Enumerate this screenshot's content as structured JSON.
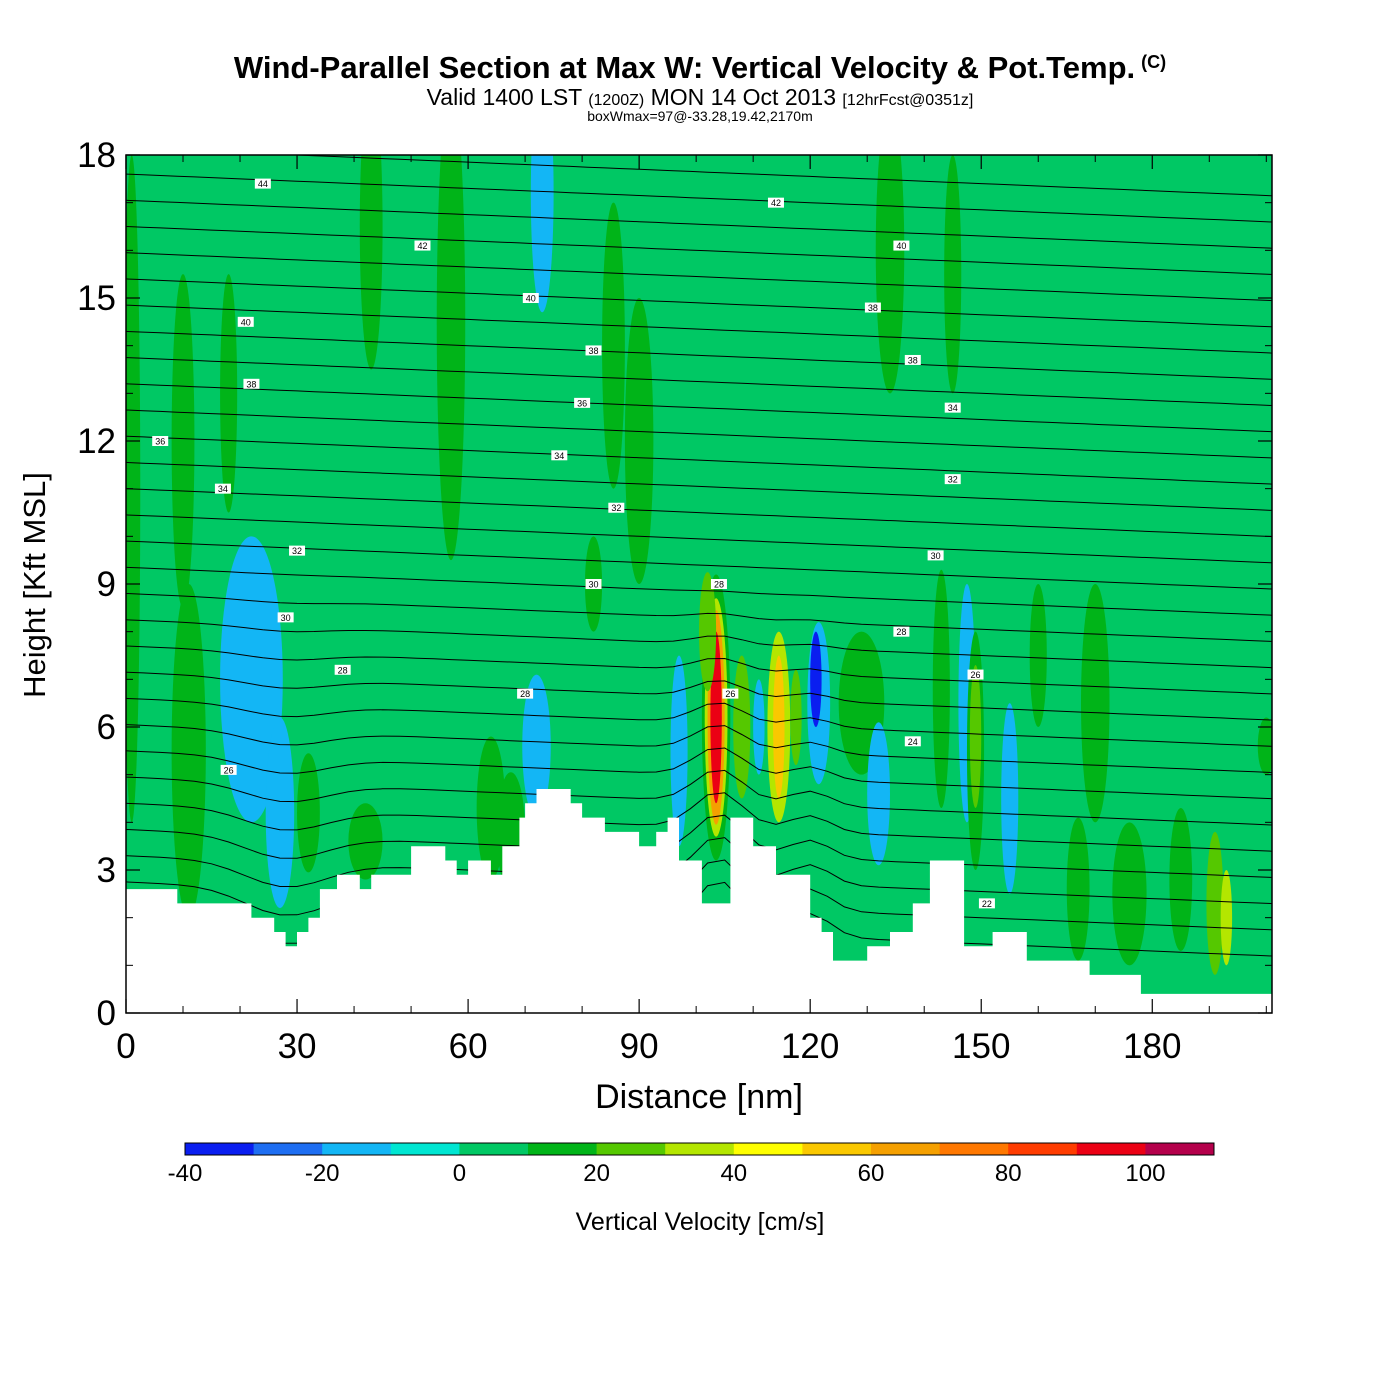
{
  "header": {
    "title": "Wind-Parallel Section at Max W: Vertical Velocity & Pot.Temp.",
    "copyright": "(C)",
    "valid_prefix": "Valid 1400 LST",
    "valid_zulu": "(1200Z)",
    "valid_date": "MON 14 Oct 2013",
    "forecast": "[12hrFcst@0351z]",
    "boxwmax": "boxWmax=97@-33.28,19.42,2170m"
  },
  "chart_data": {
    "type": "heatmap",
    "title": "Wind-Parallel Section at Max W: Vertical Velocity & Pot.Temp.",
    "xlabel": "Distance [nm]",
    "ylabel": "Height [Kft MSL]",
    "xlim": [
      0,
      201
    ],
    "ylim": [
      0,
      18
    ],
    "x_ticks": [
      0,
      30,
      60,
      90,
      120,
      150,
      180
    ],
    "y_ticks": [
      0,
      3,
      6,
      9,
      12,
      15,
      18
    ],
    "background_value": 0,
    "terrain": {
      "x": [
        0,
        9,
        9,
        22,
        22,
        26,
        26,
        28,
        28,
        30,
        30,
        32,
        32,
        34,
        34,
        37,
        37,
        41,
        41,
        43,
        43,
        50,
        50,
        56,
        56,
        58,
        58,
        60,
        60,
        62,
        62,
        64,
        64,
        66,
        66,
        69,
        69,
        70,
        70,
        72,
        72,
        74,
        74,
        78,
        78,
        80,
        80,
        84,
        84,
        90,
        90,
        93,
        93,
        95,
        95,
        97,
        97,
        101,
        101,
        105,
        105,
        106,
        106,
        110,
        110,
        114,
        114,
        120,
        120,
        122,
        122,
        123,
        123,
        124,
        124,
        126,
        126,
        130,
        130,
        134,
        134,
        136,
        136,
        138,
        138,
        141,
        141,
        143,
        143,
        147,
        147,
        152,
        152,
        155,
        155,
        158,
        158,
        162,
        162,
        169,
        169,
        173,
        173,
        178,
        178,
        185,
        185,
        201
      ],
      "y": [
        2.6,
        2.6,
        2.3,
        2.3,
        2.0,
        2.0,
        1.7,
        1.7,
        1.4,
        1.4,
        1.7,
        1.7,
        2.0,
        2.0,
        2.6,
        2.6,
        2.9,
        2.9,
        2.6,
        2.6,
        2.9,
        2.9,
        3.5,
        3.5,
        3.2,
        3.2,
        2.9,
        2.9,
        3.2,
        3.2,
        3.2,
        3.2,
        2.9,
        2.9,
        3.5,
        3.5,
        4.1,
        4.1,
        4.4,
        4.4,
        4.7,
        4.7,
        4.7,
        4.7,
        4.4,
        4.4,
        4.1,
        4.1,
        3.8,
        3.8,
        3.5,
        3.5,
        3.8,
        3.8,
        4.1,
        4.1,
        3.2,
        3.2,
        2.3,
        2.3,
        2.3,
        2.3,
        4.1,
        4.1,
        3.5,
        3.5,
        2.9,
        2.9,
        2.0,
        2.0,
        1.7,
        1.7,
        1.7,
        1.7,
        1.1,
        1.1,
        1.1,
        1.1,
        1.4,
        1.4,
        1.7,
        1.7,
        1.7,
        1.7,
        2.3,
        2.3,
        3.2,
        3.2,
        3.2,
        3.2,
        1.4,
        1.4,
        1.7,
        1.7,
        1.7,
        1.7,
        1.1,
        1.1,
        1.1,
        1.1,
        0.8,
        0.8,
        0.8,
        0.8,
        0.4,
        0.4,
        0.4,
        0.4
      ]
    },
    "velocity_cells": [
      {
        "x": 1,
        "y": 11,
        "w": 3,
        "h": 14,
        "v": 10
      },
      {
        "x": 10,
        "y": 12,
        "w": 4,
        "h": 7,
        "v": 10
      },
      {
        "x": 11,
        "y": 5.5,
        "w": 6,
        "h": 7,
        "v": 10
      },
      {
        "x": 18,
        "y": 13,
        "w": 3,
        "h": 5,
        "v": 10
      },
      {
        "x": 22,
        "y": 7,
        "w": 11,
        "h": 6,
        "v": -20
      },
      {
        "x": 27,
        "y": 4.2,
        "w": 5,
        "h": 4,
        "v": -20
      },
      {
        "x": 32,
        "y": 4.2,
        "w": 4,
        "h": 2.5,
        "v": 10
      },
      {
        "x": 42,
        "y": 3.6,
        "w": 6,
        "h": 1.6,
        "v": 10
      },
      {
        "x": 43,
        "y": 16.5,
        "w": 4,
        "h": 6,
        "v": 10
      },
      {
        "x": 57,
        "y": 14.5,
        "w": 5,
        "h": 10,
        "v": 10
      },
      {
        "x": 64,
        "y": 4.3,
        "w": 5,
        "h": 3,
        "v": 10
      },
      {
        "x": 67.5,
        "y": 3.8,
        "w": 5,
        "h": 2.5,
        "v": 10
      },
      {
        "x": 72,
        "y": 5.6,
        "w": 5,
        "h": 3,
        "v": -20
      },
      {
        "x": 73,
        "y": 17.2,
        "w": 4,
        "h": 5,
        "v": -20
      },
      {
        "x": 82,
        "y": 9,
        "w": 3,
        "h": 2,
        "v": 10
      },
      {
        "x": 85.5,
        "y": 14,
        "w": 4,
        "h": 6,
        "v": 10
      },
      {
        "x": 90,
        "y": 12,
        "w": 5,
        "h": 6,
        "v": 10
      },
      {
        "x": 97,
        "y": 5.5,
        "w": 3,
        "h": 4,
        "v": -20
      },
      {
        "x": 103.5,
        "y": 6.2,
        "w": 5,
        "h": 6,
        "v": 10
      },
      {
        "x": 103.5,
        "y": 6.2,
        "w": 4,
        "h": 5,
        "v": 30
      },
      {
        "x": 103.5,
        "y": 6.2,
        "w": 3,
        "h": 4.5,
        "v": 60
      },
      {
        "x": 103.5,
        "y": 6.2,
        "w": 2,
        "h": 3.6,
        "v": 90
      },
      {
        "x": 102,
        "y": 8,
        "w": 3,
        "h": 2.5,
        "v": 20
      },
      {
        "x": 108,
        "y": 6,
        "w": 3,
        "h": 3,
        "v": 20
      },
      {
        "x": 111,
        "y": 6,
        "w": 2,
        "h": 2,
        "v": -20
      },
      {
        "x": 114.5,
        "y": 6,
        "w": 4,
        "h": 4,
        "v": 30
      },
      {
        "x": 114.5,
        "y": 6,
        "w": 2,
        "h": 3,
        "v": 50
      },
      {
        "x": 117.5,
        "y": 6.2,
        "w": 2,
        "h": 2,
        "v": 20
      },
      {
        "x": 121.5,
        "y": 6.5,
        "w": 4,
        "h": 3.4,
        "v": -20
      },
      {
        "x": 121,
        "y": 7,
        "w": 2,
        "h": 2,
        "v": -40
      },
      {
        "x": 129,
        "y": 6.5,
        "w": 8,
        "h": 3,
        "v": 10
      },
      {
        "x": 132,
        "y": 4.6,
        "w": 4,
        "h": 3,
        "v": -20
      },
      {
        "x": 134,
        "y": 16,
        "w": 5,
        "h": 6,
        "v": 10
      },
      {
        "x": 143,
        "y": 6.8,
        "w": 3,
        "h": 5,
        "v": 10
      },
      {
        "x": 145,
        "y": 15.5,
        "w": 3,
        "h": 5,
        "v": 10
      },
      {
        "x": 147.5,
        "y": 6.5,
        "w": 3,
        "h": 5,
        "v": -20
      },
      {
        "x": 149,
        "y": 5.5,
        "w": 3,
        "h": 5,
        "v": 10
      },
      {
        "x": 149,
        "y": 5.8,
        "w": 2,
        "h": 3,
        "v": 25
      },
      {
        "x": 155,
        "y": 4.5,
        "w": 3,
        "h": 4,
        "v": -20
      },
      {
        "x": 160,
        "y": 7.5,
        "w": 3,
        "h": 3,
        "v": 10
      },
      {
        "x": 167,
        "y": 2.6,
        "w": 4,
        "h": 3,
        "v": 10
      },
      {
        "x": 170,
        "y": 6.5,
        "w": 5,
        "h": 5,
        "v": 10
      },
      {
        "x": 176,
        "y": 2.5,
        "w": 6,
        "h": 3,
        "v": 10
      },
      {
        "x": 185,
        "y": 2.8,
        "w": 4,
        "h": 3,
        "v": 10
      },
      {
        "x": 191,
        "y": 2.3,
        "w": 3,
        "h": 3,
        "v": 20
      },
      {
        "x": 193,
        "y": 2,
        "w": 2,
        "h": 2,
        "v": 35
      },
      {
        "x": 200,
        "y": 5.6,
        "w": 3,
        "h": 1.2,
        "v": 10
      }
    ],
    "isentrope_labels": [
      {
        "x": 24,
        "y": 17.4,
        "text": "44"
      },
      {
        "x": 52,
        "y": 16.1,
        "text": "42"
      },
      {
        "x": 114,
        "y": 17.0,
        "text": "42"
      },
      {
        "x": 136,
        "y": 16.1,
        "text": "40"
      },
      {
        "x": 21,
        "y": 14.5,
        "text": "40"
      },
      {
        "x": 71,
        "y": 15.0,
        "text": "40"
      },
      {
        "x": 131,
        "y": 14.8,
        "text": "38"
      },
      {
        "x": 82,
        "y": 13.9,
        "text": "38"
      },
      {
        "x": 138,
        "y": 13.7,
        "text": "38"
      },
      {
        "x": 22,
        "y": 13.2,
        "text": "38"
      },
      {
        "x": 80,
        "y": 12.8,
        "text": "36"
      },
      {
        "x": 145,
        "y": 12.7,
        "text": "34"
      },
      {
        "x": 6,
        "y": 12.0,
        "text": "36"
      },
      {
        "x": 76,
        "y": 11.7,
        "text": "34"
      },
      {
        "x": 145,
        "y": 11.2,
        "text": "32"
      },
      {
        "x": 17,
        "y": 11.0,
        "text": "34"
      },
      {
        "x": 86,
        "y": 10.6,
        "text": "32"
      },
      {
        "x": 30,
        "y": 9.7,
        "text": "32"
      },
      {
        "x": 142,
        "y": 9.6,
        "text": "30"
      },
      {
        "x": 82,
        "y": 9.0,
        "text": "30"
      },
      {
        "x": 104,
        "y": 9.0,
        "text": "28"
      },
      {
        "x": 28,
        "y": 8.3,
        "text": "30"
      },
      {
        "x": 136,
        "y": 8.0,
        "text": "28"
      },
      {
        "x": 38,
        "y": 7.2,
        "text": "28"
      },
      {
        "x": 149,
        "y": 7.1,
        "text": "26"
      },
      {
        "x": 70,
        "y": 6.7,
        "text": "28"
      },
      {
        "x": 106,
        "y": 6.7,
        "text": "26"
      },
      {
        "x": 138,
        "y": 5.7,
        "text": "24"
      },
      {
        "x": 18,
        "y": 5.1,
        "text": "26"
      },
      {
        "x": 151,
        "y": 2.3,
        "text": "22"
      }
    ],
    "colorbar": {
      "label": "Vertical Velocity [cm/s]",
      "bounds": [
        -40,
        -30,
        -20,
        -10,
        0,
        10,
        20,
        30,
        40,
        50,
        60,
        70,
        80,
        90,
        100,
        110
      ],
      "tick_labels": [
        "-40",
        "-20",
        "0",
        "20",
        "40",
        "60",
        "80",
        "100"
      ],
      "colors": [
        "#0a1ef0",
        "#1e6ef2",
        "#13b6f5",
        "#00e6d2",
        "#00c864",
        "#00b418",
        "#55c800",
        "#b4e600",
        "#ffff00",
        "#fac800",
        "#f5a000",
        "#ff7800",
        "#ff3c00",
        "#eb0014",
        "#b4004b"
      ]
    }
  }
}
